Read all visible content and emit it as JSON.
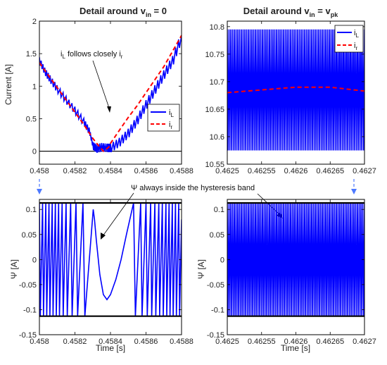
{
  "chart_data": [
    {
      "id": "tl",
      "type": "line",
      "title": "Detail around v",
      "title_sub": "in",
      "title_tail": " = 0",
      "ylabel": "Current [A]",
      "xlabel": "",
      "xlim": [
        0.458,
        0.4588
      ],
      "ylim": [
        -0.2,
        2
      ],
      "xticks": [
        0.458,
        0.4582,
        0.4584,
        0.4586,
        0.4588
      ],
      "xtick_labels": [
        "0.458",
        "0.4582",
        "0.4584",
        "0.4586",
        "0.4588"
      ],
      "yticks": [
        0,
        0.5,
        1,
        1.5,
        2
      ],
      "ytick_labels": [
        "0",
        "0.5",
        "1",
        "1.5",
        "2"
      ],
      "grid": false,
      "legend": "lower-right",
      "series": [
        {
          "name": "i",
          "sub": "L",
          "color": "#0000ff",
          "style": "solid",
          "points": [
            [
              0.458,
              1.38
            ],
            [
              0.45803,
              1.22
            ],
            [
              0.45806,
              1.1
            ],
            [
              0.4581,
              0.95
            ],
            [
              0.45815,
              0.78
            ],
            [
              0.4582,
              0.62
            ],
            [
              0.45825,
              0.44
            ],
            [
              0.45828,
              0.3
            ],
            [
              0.4583,
              0.08
            ],
            [
              0.45832,
              0.04
            ],
            [
              0.45835,
              0.06
            ],
            [
              0.45838,
              0.05
            ],
            [
              0.4584,
              0.05
            ],
            [
              0.45845,
              0.14
            ],
            [
              0.4585,
              0.28
            ],
            [
              0.45855,
              0.48
            ],
            [
              0.4586,
              0.72
            ],
            [
              0.45865,
              0.95
            ],
            [
              0.4587,
              1.18
            ],
            [
              0.45875,
              1.4
            ],
            [
              0.4588,
              1.78
            ]
          ]
        },
        {
          "name": "i",
          "sub": "r",
          "color": "#ff0000",
          "style": "dashed",
          "points": [
            [
              0.458,
              1.36
            ],
            [
              0.4581,
              0.98
            ],
            [
              0.4582,
              0.6
            ],
            [
              0.45825,
              0.41
            ],
            [
              0.4583,
              0.2
            ],
            [
              0.45834,
              0.06
            ],
            [
              0.45836,
              0.0
            ],
            [
              0.45839,
              0.06
            ],
            [
              0.4584,
              0.12
            ],
            [
              0.45845,
              0.32
            ],
            [
              0.4585,
              0.52
            ],
            [
              0.45855,
              0.7
            ],
            [
              0.4586,
              0.9
            ],
            [
              0.4587,
              1.3
            ],
            [
              0.4588,
              1.78
            ]
          ]
        }
      ],
      "annotations": [
        {
          "text": "i",
          "sub": "L",
          "tail": " follows closely i",
          "tail_sub": "r"
        }
      ]
    },
    {
      "id": "tr",
      "type": "line",
      "title": "Detail around v",
      "title_sub": "in",
      "title_tail": " = v",
      "title_sub2": "pk",
      "ylabel": "",
      "xlabel": "",
      "xlim": [
        0.4625,
        0.4627
      ],
      "ylim": [
        10.55,
        10.81
      ],
      "xticks": [
        0.4625,
        0.46255,
        0.4626,
        0.46265,
        0.4627
      ],
      "xtick_labels": [
        "0.4625",
        "0.46255",
        "0.4626",
        "0.46265",
        "0.4627"
      ],
      "yticks": [
        10.55,
        10.6,
        10.65,
        10.7,
        10.75,
        10.8
      ],
      "ytick_labels": [
        "10.55",
        "10.6",
        "10.65",
        "10.7",
        "10.75",
        "10.8"
      ],
      "grid": false,
      "legend": "top-right",
      "series": [
        {
          "name": "i",
          "sub": "L",
          "color": "#0000ff",
          "style": "solid",
          "ripple": {
            "cycles": 78,
            "center": 10.685,
            "half_amplitude": 0.11
          }
        },
        {
          "name": "i",
          "sub": "r",
          "color": "#ff0000",
          "style": "dashed",
          "points": [
            [
              0.4625,
              10.68
            ],
            [
              0.46255,
              10.685
            ],
            [
              0.4626,
              10.69
            ],
            [
              0.46265,
              10.69
            ],
            [
              0.4627,
              10.683
            ]
          ]
        }
      ]
    },
    {
      "id": "bl",
      "type": "line",
      "ylabel": "Ψ [A]",
      "xlabel": "Time [s]",
      "xlim": [
        0.458,
        0.4588
      ],
      "ylim": [
        -0.15,
        0.12
      ],
      "xticks": [
        0.458,
        0.4582,
        0.4584,
        0.4586,
        0.4588
      ],
      "xtick_labels": [
        "0.458",
        "0.4582",
        "0.4584",
        "0.4586",
        "0.4588"
      ],
      "yticks": [
        -0.15,
        -0.1,
        -0.05,
        0,
        0.05,
        0.1
      ],
      "ytick_labels": [
        "-0.15",
        "-0.1",
        "-0.05",
        "0",
        "0.05",
        "0.1"
      ],
      "band": [
        -0.113,
        0.113
      ],
      "series": [
        {
          "name": "Ψ",
          "color": "#0000ff",
          "style": "solid",
          "points": [
            [
              0.458,
              0.113
            ],
            [
              0.458005,
              -0.113
            ],
            [
              0.458018,
              0.113
            ],
            [
              0.458023,
              -0.113
            ],
            [
              0.458036,
              0.113
            ],
            [
              0.458041,
              -0.113
            ],
            [
              0.458054,
              0.113
            ],
            [
              0.458059,
              -0.113
            ],
            [
              0.458072,
              0.113
            ],
            [
              0.458077,
              -0.113
            ],
            [
              0.45809,
              0.113
            ],
            [
              0.458095,
              -0.113
            ],
            [
              0.458108,
              0.113
            ],
            [
              0.458113,
              -0.113
            ],
            [
              0.458128,
              0.113
            ],
            [
              0.458134,
              -0.113
            ],
            [
              0.45815,
              0.113
            ],
            [
              0.458157,
              -0.113
            ],
            [
              0.458176,
              0.113
            ],
            [
              0.458184,
              -0.113
            ],
            [
              0.458206,
              0.113
            ],
            [
              0.458215,
              -0.113
            ],
            [
              0.458245,
              0.113
            ],
            [
              0.458256,
              -0.113
            ],
            [
              0.458303,
              0.1
            ],
            [
              0.45831,
              0.08
            ],
            [
              0.45832,
              0.04
            ],
            [
              0.45834,
              -0.03
            ],
            [
              0.45836,
              -0.07
            ],
            [
              0.45838,
              -0.08
            ],
            [
              0.4584,
              -0.07
            ],
            [
              0.45843,
              -0.04
            ],
            [
              0.45846,
              0.0
            ],
            [
              0.45849,
              0.05
            ],
            [
              0.45853,
              0.113
            ],
            [
              0.45854,
              -0.113
            ],
            [
              0.45857,
              0.113
            ],
            [
              0.458578,
              -0.113
            ],
            [
              0.4586,
              0.113
            ],
            [
              0.458607,
              -0.113
            ],
            [
              0.458626,
              0.113
            ],
            [
              0.458632,
              -0.113
            ],
            [
              0.45865,
              0.113
            ],
            [
              0.458655,
              -0.113
            ],
            [
              0.458672,
              0.113
            ],
            [
              0.458677,
              -0.113
            ],
            [
              0.458692,
              0.113
            ],
            [
              0.458697,
              -0.113
            ],
            [
              0.458712,
              0.113
            ],
            [
              0.458717,
              -0.113
            ],
            [
              0.45873,
              0.113
            ],
            [
              0.458735,
              -0.113
            ],
            [
              0.458748,
              0.113
            ],
            [
              0.458753,
              -0.113
            ],
            [
              0.458766,
              0.113
            ],
            [
              0.458771,
              -0.113
            ],
            [
              0.458784,
              0.113
            ],
            [
              0.458789,
              -0.113
            ],
            [
              0.4588,
              0.08
            ]
          ]
        }
      ],
      "annotations": [
        {
          "text": "Ψ always inside the hysteresis band"
        }
      ]
    },
    {
      "id": "br",
      "type": "line",
      "ylabel": "Ψ [A]",
      "xlabel": "Time [s]",
      "xlim": [
        0.4625,
        0.4627
      ],
      "ylim": [
        -0.15,
        0.12
      ],
      "xticks": [
        0.4625,
        0.46255,
        0.4626,
        0.46265,
        0.4627
      ],
      "xtick_labels": [
        "0.4625",
        "0.46255",
        "0.4626",
        "0.46265",
        "0.4627"
      ],
      "yticks": [
        -0.15,
        -0.1,
        -0.05,
        0,
        0.05,
        0.1
      ],
      "ytick_labels": [
        "-0.15",
        "-0.1",
        "-0.05",
        "0",
        "0.05",
        "0.1"
      ],
      "band": [
        -0.113,
        0.113
      ],
      "series": [
        {
          "name": "Ψ",
          "color": "#0000ff",
          "style": "solid",
          "ripple": {
            "cycles": 78,
            "center": 0,
            "half_amplitude": 0.113
          }
        }
      ]
    }
  ]
}
